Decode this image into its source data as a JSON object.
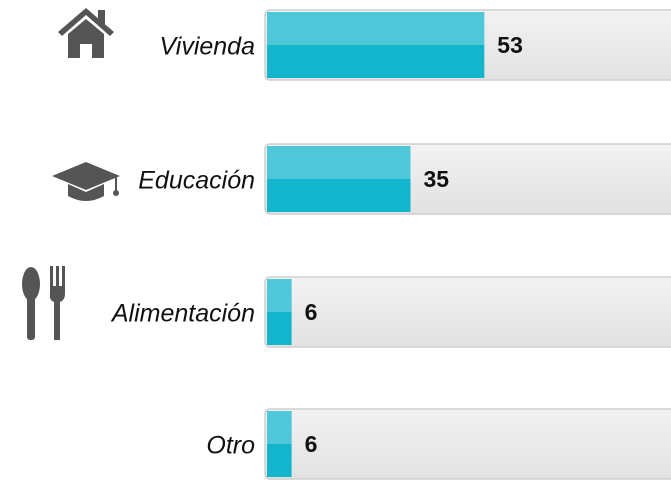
{
  "chart_data": {
    "type": "bar",
    "orientation": "horizontal",
    "categories": [
      "Vivienda",
      "Educación",
      "Alimentación",
      "Otro"
    ],
    "values": [
      53,
      35,
      6,
      6
    ],
    "color": "#13b5cc",
    "xlim": [
      0,
      100
    ]
  }
}
